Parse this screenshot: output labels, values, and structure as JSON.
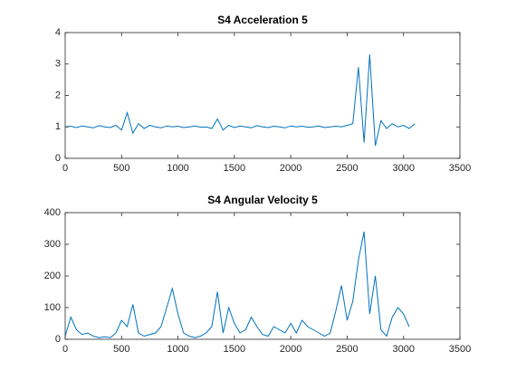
{
  "chart_data": [
    {
      "type": "line",
      "title": "S4 Acceleration 5",
      "x": [
        0,
        50,
        100,
        150,
        200,
        250,
        300,
        350,
        400,
        450,
        500,
        550,
        600,
        650,
        700,
        750,
        800,
        850,
        900,
        950,
        1000,
        1050,
        1100,
        1150,
        1200,
        1250,
        1300,
        1350,
        1400,
        1450,
        1500,
        1550,
        1600,
        1650,
        1700,
        1750,
        1800,
        1850,
        1900,
        1950,
        2000,
        2050,
        2100,
        2150,
        2200,
        2250,
        2300,
        2350,
        2400,
        2450,
        2500,
        2550,
        2600,
        2650,
        2700,
        2750,
        2800,
        2850,
        2900,
        2950,
        3000,
        3050,
        3100
      ],
      "series": [
        {
          "color": "#0072bd",
          "values": [
            1.0,
            1.02,
            0.98,
            1.03,
            1.0,
            0.97,
            1.04,
            1.0,
            0.98,
            1.05,
            0.9,
            1.45,
            0.8,
            1.1,
            0.95,
            1.05,
            1.0,
            0.97,
            1.03,
            1.0,
            1.02,
            0.98,
            1.0,
            1.03,
            0.99,
            1.0,
            0.95,
            1.25,
            0.9,
            1.05,
            0.98,
            1.03,
            1.0,
            0.97,
            1.04,
            1.0,
            0.98,
            1.02,
            1.0,
            0.97,
            1.03,
            1.0,
            1.02,
            0.99,
            1.0,
            1.03,
            0.98,
            1.0,
            1.02,
            1.0,
            1.05,
            1.1,
            2.9,
            0.5,
            3.3,
            0.4,
            1.2,
            0.95,
            1.1,
            1.0,
            1.05,
            0.95,
            1.1
          ]
        }
      ],
      "xlim": [
        0,
        3500
      ],
      "xticks": [
        0,
        500,
        1000,
        1500,
        2000,
        2500,
        3000,
        3500
      ],
      "ylim": [
        0,
        4
      ],
      "yticks": [
        0,
        1,
        2,
        3,
        4
      ]
    },
    {
      "type": "line",
      "title": "S4 Angular Velocity 5",
      "x": [
        0,
        50,
        100,
        150,
        200,
        250,
        300,
        350,
        400,
        450,
        500,
        550,
        600,
        650,
        700,
        750,
        800,
        850,
        900,
        950,
        1000,
        1050,
        1100,
        1150,
        1200,
        1250,
        1300,
        1350,
        1400,
        1450,
        1500,
        1550,
        1600,
        1650,
        1700,
        1750,
        1800,
        1850,
        1900,
        1950,
        2000,
        2050,
        2100,
        2150,
        2200,
        2250,
        2300,
        2350,
        2400,
        2450,
        2500,
        2550,
        2600,
        2650,
        2700,
        2750,
        2800,
        2850,
        2900,
        2950,
        3000,
        3050
      ],
      "series": [
        {
          "color": "#0072bd",
          "values": [
            10,
            70,
            30,
            15,
            20,
            10,
            5,
            8,
            5,
            20,
            60,
            40,
            110,
            20,
            10,
            15,
            20,
            40,
            100,
            160,
            80,
            20,
            10,
            5,
            10,
            20,
            40,
            150,
            20,
            100,
            50,
            20,
            30,
            70,
            40,
            15,
            10,
            40,
            30,
            20,
            50,
            20,
            60,
            40,
            30,
            20,
            10,
            20,
            90,
            170,
            60,
            120,
            250,
            340,
            80,
            200,
            30,
            10,
            70,
            100,
            80,
            40
          ]
        }
      ],
      "xlim": [
        0,
        3500
      ],
      "xticks": [
        0,
        500,
        1000,
        1500,
        2000,
        2500,
        3000,
        3500
      ],
      "ylim": [
        0,
        400
      ],
      "yticks": [
        0,
        100,
        200,
        300,
        400
      ]
    }
  ]
}
